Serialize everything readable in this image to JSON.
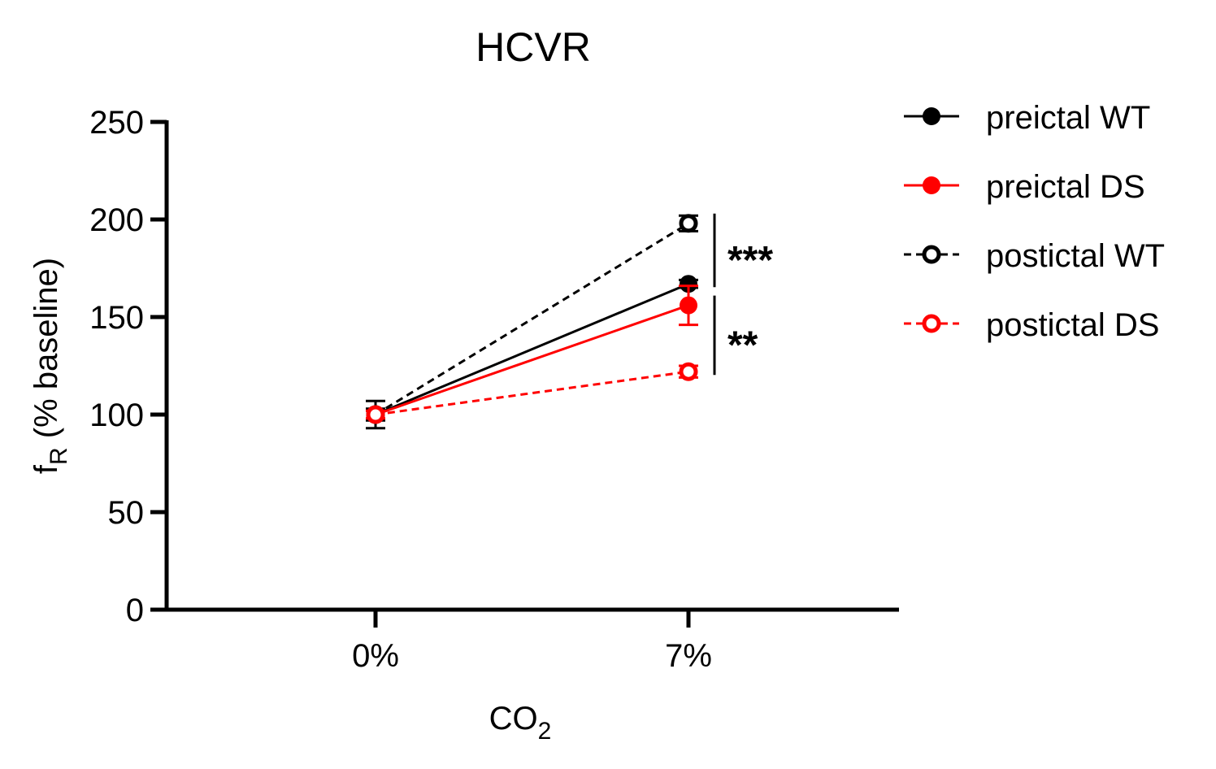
{
  "chart_data": {
    "type": "line",
    "title": "HCVR",
    "y_label": {
      "main": "f",
      "subscript": "R",
      "suffix": " (% baseline)"
    },
    "x_label": {
      "main": "CO",
      "subscript": "2"
    },
    "categories": [
      "0%",
      "7%"
    ],
    "ylim": [
      0,
      250
    ],
    "yticks": [
      0,
      50,
      100,
      150,
      200,
      250
    ],
    "legend": "right",
    "series": [
      {
        "name": "preictal WT",
        "color": "#000000",
        "marker": "filled",
        "line_style": "solid",
        "values": [
          100,
          167
        ],
        "errors": [
          7,
          2
        ]
      },
      {
        "name": "preictal DS",
        "color": "#ff0000",
        "marker": "filled",
        "line_style": "solid",
        "values": [
          100,
          156
        ],
        "errors": [
          2,
          10
        ]
      },
      {
        "name": "postictal WT",
        "color": "#000000",
        "marker": "open",
        "line_style": "dashed",
        "values": [
          100,
          198
        ],
        "errors": [
          3,
          4
        ]
      },
      {
        "name": "postictal DS",
        "color": "#ff0000",
        "marker": "open",
        "line_style": "dashed",
        "values": [
          100,
          122
        ],
        "errors": [
          2,
          3
        ]
      }
    ],
    "annotations": [
      "***",
      "**"
    ]
  }
}
